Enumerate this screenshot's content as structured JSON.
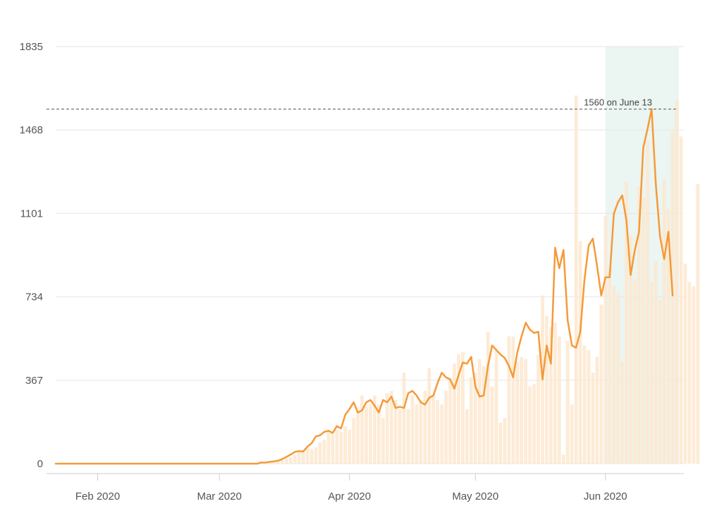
{
  "chart_data": {
    "type": "bar",
    "title": "",
    "xlabel": "",
    "ylabel": "",
    "ylim": [
      0,
      1835
    ],
    "yticks": [
      0,
      367,
      734,
      1101,
      1468,
      1835
    ],
    "ytick_labels": [
      "0",
      "367",
      "734",
      "1101",
      "1468",
      "1835"
    ],
    "grid": true,
    "x_start": "2020-01-22",
    "x_end": "2020-06-18",
    "xticks": [
      {
        "date": "2020-02-01",
        "label": "Feb 2020"
      },
      {
        "date": "2020-03-01",
        "label": "Mar 2020"
      },
      {
        "date": "2020-04-01",
        "label": "Apr 2020"
      },
      {
        "date": "2020-05-01",
        "label": "May 2020"
      },
      {
        "date": "2020-06-01",
        "label": "Jun 2020"
      }
    ],
    "highlight_range": {
      "start": "2020-06-01",
      "end": "2020-06-18",
      "color": "#dbece8"
    },
    "reference_line": {
      "value": 1560,
      "label": "1560 on June 13"
    },
    "bar_color": "#fde8cf",
    "line_color": "#f59a38",
    "series": [
      {
        "type": "bar",
        "start_date": "2020-03-11",
        "values": [
          8,
          5,
          10,
          6,
          9,
          14,
          20,
          28,
          38,
          48,
          58,
          68,
          64,
          72,
          95,
          105,
          140,
          130,
          150,
          140,
          165,
          150,
          200,
          230,
          300,
          250,
          260,
          300,
          260,
          200,
          310,
          320,
          280,
          240,
          400,
          240,
          300,
          260,
          280,
          320,
          420,
          300,
          280,
          260,
          320,
          380,
          440,
          480,
          490,
          240,
          380,
          400,
          460,
          430,
          580,
          340,
          500,
          180,
          200,
          560,
          560,
          450,
          470,
          460,
          340,
          350,
          480,
          740,
          650,
          600,
          620,
          560,
          40,
          540,
          260,
          1620,
          980,
          520,
          500,
          400,
          470,
          700,
          1090,
          860,
          780,
          750,
          450,
          1240,
          1000,
          810,
          1220,
          1170,
          1420,
          800,
          890,
          720,
          1250,
          1120,
          1460,
          1600,
          1440,
          880,
          800,
          780,
          1230
        ]
      },
      {
        "type": "line",
        "start_date": "2020-01-22",
        "values": [
          0,
          0,
          0,
          0,
          0,
          0,
          0,
          0,
          0,
          0,
          0,
          0,
          0,
          0,
          0,
          0,
          0,
          0,
          0,
          0,
          0,
          0,
          0,
          0,
          0,
          0,
          0,
          0,
          0,
          0,
          0,
          0,
          0,
          0,
          0,
          0,
          0,
          0,
          0,
          0,
          0,
          0,
          0,
          0,
          0,
          0,
          0,
          0,
          0,
          5,
          5,
          8,
          10,
          13,
          20,
          30,
          40,
          52,
          55,
          54,
          75,
          90,
          120,
          125,
          140,
          145,
          135,
          165,
          155,
          215,
          240,
          270,
          225,
          235,
          270,
          280,
          255,
          225,
          280,
          270,
          295,
          245,
          250,
          245,
          310,
          320,
          300,
          270,
          260,
          290,
          300,
          355,
          400,
          380,
          370,
          330,
          390,
          445,
          440,
          470,
          340,
          295,
          300,
          430,
          520,
          500,
          480,
          465,
          430,
          380,
          490,
          560,
          620,
          590,
          575,
          580,
          370,
          520,
          440,
          950,
          860,
          940,
          630,
          520,
          510,
          580,
          810,
          960,
          990,
          870,
          740,
          820,
          820,
          1100,
          1150,
          1180,
          1070,
          830,
          940,
          1020,
          1390,
          1470,
          1560,
          1230,
          1000,
          900,
          1020,
          740
        ]
      }
    ]
  }
}
